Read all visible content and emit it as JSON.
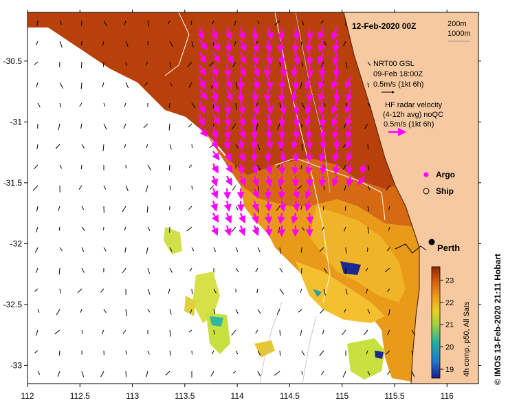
{
  "title": "12-Feb-2020 00Z",
  "isobaths": [
    "200m",
    "1000m"
  ],
  "model_block": {
    "name": "NRT00 GSL",
    "time": "09-Feb 18:00Z",
    "scale": "0.5m/s (1kt 6h)"
  },
  "radar_block": {
    "line1": "HF radar velocity",
    "line2": "(4-12h avg) noQC",
    "scale": "0.5m/s (1kt 6h)"
  },
  "markers": {
    "argo": "Argo",
    "ship": "Ship",
    "city": "Perth"
  },
  "colorbar": {
    "label": "4h comp, p50, All Sats",
    "ticks": [
      "23",
      "22",
      "21",
      "20",
      "19"
    ],
    "min": 18.6,
    "max": 23.6
  },
  "credit": "© IMOS 13-Feb-2020 21:11 Hobart",
  "axes": {
    "x_ticks": [
      "112",
      "112.5",
      "113",
      "113.5",
      "114",
      "114.5",
      "115",
      "115.5",
      "116"
    ],
    "y_ticks": [
      "-30.5",
      "-31",
      "-31.5",
      "-32",
      "-32.5",
      "-33"
    ],
    "xlim": [
      112,
      116.3
    ],
    "ylim": [
      -33.15,
      -30.1
    ]
  },
  "colors": {
    "land": "#f7c9a0",
    "warm_sst": "#b8400a",
    "mid_sst": "#e08a10",
    "cool_sst": "#f0b020",
    "green_sst": "#c8e040",
    "radar_arrow": "#ff00ff",
    "model_arrow": "#000000"
  }
}
